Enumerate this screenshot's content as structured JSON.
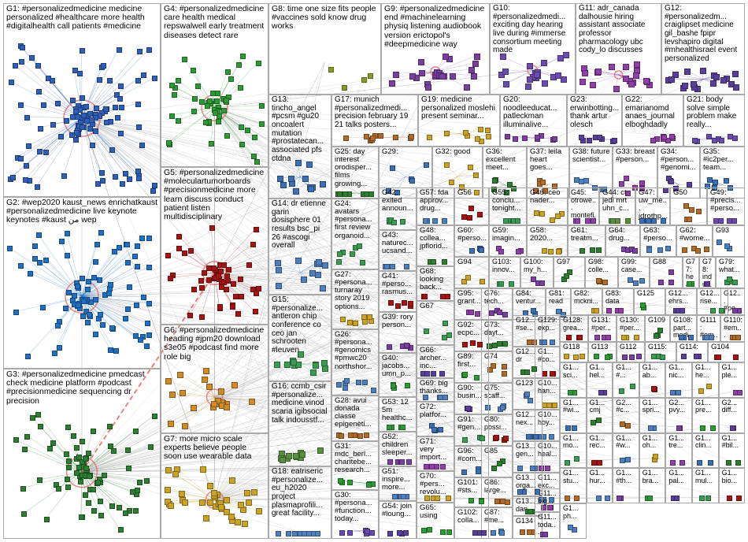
{
  "groups": [
    {
      "id": "G1",
      "label": "G1: #personalizedmedicine medicine personalized #healthcare more health #digitalhealth call patients #medicine",
      "color": "#2f5fb8",
      "nodes": 110
    },
    {
      "id": "G2",
      "label": "G2: #wep2020 kaust_news enrichatkaust #personalizedmedicine live keynote keynotes #kaust من wep",
      "color": "#1f6fc2",
      "nodes": 85
    },
    {
      "id": "G3",
      "label": "G3: #personalizedmedicine pmedcast check medicine platform #podcast #precisionmedicine sequencing dr precision",
      "color": "#2e7d32",
      "nodes": 80
    },
    {
      "id": "G4",
      "label": "G4: #personalizedmedicine care health medical repswalwell early treatment diseases detect rare",
      "color": "#2e9a35",
      "nodes": 55
    },
    {
      "id": "G5",
      "label": "G5: #personalizedmedicine #moleculartumorboards #precisionmedicine more learn discuss conduct patient listen multidisciplinary",
      "color": "#a31515",
      "nodes": 50
    },
    {
      "id": "G6",
      "label": "G6: #personalizedmedicine heading #jpm20 download s3e05 #podcast find more role big",
      "color": "#d08a2a",
      "nodes": 22
    },
    {
      "id": "G7",
      "label": "G7: more micro scale experts believe people soon use wearable data",
      "color": "#c9a227",
      "nodes": 40
    },
    {
      "id": "G8",
      "label": "G8: time one size fits people #vaccines sold know drug works",
      "color": "#8a9a2a",
      "nodes": 4
    },
    {
      "id": "G9",
      "label": "G9: #personalizedmedicine end #machinelearning physiq listening audiobook version erictopol's #deepmedicine way",
      "color": "#7b3fa0",
      "nodes": 26
    },
    {
      "id": "G10",
      "label": "G10: #personalizedmedi... exciting day hearing live during #immerse consortium meeting made",
      "color": "#6a4bb0",
      "nodes": 22
    },
    {
      "id": "G11",
      "label": "G11: adr_canada dalhousie hiring assistant associate professor pharmacology ubc cody_lo discusses",
      "color": "#8e3fa8",
      "nodes": 20
    },
    {
      "id": "G12",
      "label": "G12: #personalizedm... craiglipset medicine gil_bashe fpipr levshapiro digital #mhealthisrael event personalized",
      "color": "#5a3f9a",
      "nodes": 18
    },
    {
      "id": "G13",
      "label": "G13: tincho_angel #pcsm #gu20 oncoalert mutation #prostatecan... associated pfs ctdna",
      "color": "#3c6fb4",
      "nodes": 12
    },
    {
      "id": "G14",
      "label": "G14: dr etienne garin dosisphere 01 results bsc_pi 26 #ascogi overall",
      "color": "#4d7fbf",
      "nodes": 12
    },
    {
      "id": "G15",
      "label": "G15: #personalize... antleron chip conference co ceo jan schrooten #leuven",
      "color": "#3c9a52",
      "nodes": 12
    },
    {
      "id": "G16",
      "label": "G16: ccmb_csir #personalize... medicine vinod scaria igibsocial talk indousstf...",
      "color": "#5a8f3f",
      "nodes": 11
    },
    {
      "id": "G17",
      "label": "G17: munich #personalizedmedi... precision february 19 21 talks posters...",
      "color": "#b06a2a",
      "nodes": 10
    },
    {
      "id": "G18",
      "label": "G18: eatriseric #personalize... eu_h2020 project plasmaprofili... great facility...",
      "color": "#4f7fbf",
      "nodes": 10
    },
    {
      "id": "G19",
      "label": "G19: medicine personalized moslehi present seminar...",
      "color": "#c9a227",
      "nodes": 9
    },
    {
      "id": "G20",
      "label": "G20: noodleeducat... patleckman illuminalive...",
      "color": "#7b3fa0",
      "nodes": 9
    },
    {
      "id": "G21",
      "label": "G21: body solve simple problem make really...",
      "color": "#6a4bb0",
      "nodes": 8
    },
    {
      "id": "G22",
      "label": "G22: emarianomd anaes_journal elboghdadly",
      "color": "#8e3fa8",
      "nodes": 8
    },
    {
      "id": "G23",
      "label": "G23: erwinbotting... thank artur olesch",
      "color": "#5a3f9a",
      "nodes": 8
    },
    {
      "id": "G24",
      "label": "G24: avatars #persona... first review organoid...",
      "color": "#3c9a52",
      "nodes": 7
    },
    {
      "id": "G25",
      "label": "G25: day interest orodisper... films growing...",
      "color": "#2e7d32",
      "nodes": 7
    },
    {
      "id": "G26",
      "label": "G26: #persona... #genomics #pmwc20 northshor...",
      "color": "#4d7fbf",
      "nodes": 7
    },
    {
      "id": "G27",
      "label": "G27: #persona... turnaray story 2019 options...",
      "color": "#c9a227",
      "nodes": 7
    },
    {
      "id": "G28",
      "label": "G28: avui donada classe epigenèti...",
      "color": "#b06a2a",
      "nodes": 7
    },
    {
      "id": "G29",
      "label": "G29:",
      "color": "#3c6fb4",
      "nodes": 6
    },
    {
      "id": "G30",
      "label": "G30: #persona... #function... today...",
      "color": "#6a4bb0",
      "nodes": 6
    },
    {
      "id": "G31",
      "label": "G31: mdc_berl... charitebe... research...",
      "color": "#2e9a35",
      "nodes": 6
    },
    {
      "id": "G32",
      "label": "G32: good",
      "color": "#c9a227",
      "nodes": 6
    },
    {
      "id": "G33",
      "label": "G33: breast #person...",
      "color": "#8e3fa8",
      "nodes": 6
    },
    {
      "id": "G34",
      "label": "G34: #person... #genomi...",
      "color": "#5a3f9a",
      "nodes": 6
    },
    {
      "id": "G35",
      "label": "G35: #ic2per... team...",
      "color": "#3c6fb4",
      "nodes": 6
    },
    {
      "id": "G36",
      "label": "G36: excellent meet...",
      "color": "#2e7d32",
      "nodes": 6
    },
    {
      "id": "G37",
      "label": "G37: leila heart goes...",
      "color": "#b06a2a",
      "nodes": 6
    },
    {
      "id": "G38",
      "label": "G38: future scientist...",
      "color": "#4f7fbf",
      "nodes": 6
    },
    {
      "id": "G39",
      "label": "G39: rory person...",
      "color": "#7b3fa0",
      "nodes": 5
    },
    {
      "id": "G40",
      "label": "G40: jacobs... umn_p...",
      "color": "#2e9a35",
      "nodes": 5
    },
    {
      "id": "G41",
      "label": "G41: #perso... rasmus...",
      "color": "#a31515",
      "nodes": 5
    },
    {
      "id": "G42",
      "label": "G42: exited announ...",
      "color": "#3c9a52",
      "nodes": 5
    },
    {
      "id": "G43",
      "label": "G43: naturec... ucsand...",
      "color": "#4d7fbf",
      "nodes": 5
    },
    {
      "id": "G44",
      "label": "G44: ct jedi mrt uhn_c...",
      "color": "#5a8f3f",
      "nodes": 5
    },
    {
      "id": "G45",
      "label": "G45: otrowe... montefi...",
      "color": "#8e3fa8",
      "nodes": 5
    },
    {
      "id": "G46",
      "label": "G46: ceo nader...",
      "color": "#c9a227",
      "nodes": 5
    },
    {
      "id": "G47",
      "label": "G47: uw_me... jdrothp...",
      "color": "#3c6fb4",
      "nodes": 5
    },
    {
      "id": "G48",
      "label": "G48: collea... jpflorid...",
      "color": "#2e7d32",
      "nodes": 5
    },
    {
      "id": "G49",
      "label": "G49: #precis... #perso...",
      "color": "#6a4bb0",
      "nodes": 5
    },
    {
      "id": "G50",
      "label": "G50",
      "color": "#b06a2a",
      "nodes": 5
    },
    {
      "id": "G51",
      "label": "G51: inspire... more...",
      "color": "#4f7fbf",
      "nodes": 5
    },
    {
      "id": "G52",
      "label": "G52: children sleeper...",
      "color": "#7b3fa0",
      "nodes": 5
    },
    {
      "id": "G53",
      "label": "G53: 12 5m healthc...",
      "color": "#2e9a35",
      "nodes": 4
    },
    {
      "id": "G54",
      "label": "G54: join #loung...",
      "color": "#5a3f9a",
      "nodes": 4
    },
    {
      "id": "G55",
      "label": "G55: conclu... tonight...",
      "color": "#3c9a52",
      "nodes": 4
    },
    {
      "id": "G56",
      "label": "G56",
      "color": "#a31515",
      "nodes": 4
    },
    {
      "id": "G57",
      "label": "G57: fda approv... drug...",
      "color": "#4d7fbf",
      "nodes": 4
    },
    {
      "id": "G58",
      "label": "G58: 2020...",
      "color": "#c9a227",
      "nodes": 4
    },
    {
      "id": "G59",
      "label": "G59: imagin...",
      "color": "#8e3fa8",
      "nodes": 4
    },
    {
      "id": "G60",
      "label": "G60: #perso...",
      "color": "#3c6fb4",
      "nodes": 4
    },
    {
      "id": "G61",
      "label": "G61: treatm...",
      "color": "#2e7d32",
      "nodes": 4
    },
    {
      "id": "G62",
      "label": "G62: #wome...",
      "color": "#b06a2a",
      "nodes": 4
    },
    {
      "id": "G63",
      "label": "G63: #perso...",
      "color": "#4f7fbf",
      "nodes": 4
    },
    {
      "id": "G64",
      "label": "G64: drug...",
      "color": "#7b3fa0",
      "nodes": 4
    },
    {
      "id": "G65",
      "label": "G65: using",
      "color": "#2e9a35",
      "nodes": 4
    },
    {
      "id": "G66",
      "label": "G66: archer... inc...",
      "color": "#5a3f9a",
      "nodes": 4
    },
    {
      "id": "G67",
      "label": "G67",
      "color": "#3c9a52",
      "nodes": 4
    },
    {
      "id": "G68",
      "label": "G68: looking back...",
      "color": "#a31515",
      "nodes": 4
    },
    {
      "id": "G69",
      "label": "G69: big thanks...",
      "color": "#4d7fbf",
      "nodes": 4
    },
    {
      "id": "G70",
      "label": "G70: #pers... revolu...",
      "color": "#c9a227",
      "nodes": 4
    },
    {
      "id": "G71",
      "label": "G71: very import...",
      "color": "#8e3fa8",
      "nodes": 4
    },
    {
      "id": "G72",
      "label": "G72: platfor...",
      "color": "#3c6fb4",
      "nodes": 4
    },
    {
      "id": "G73",
      "label": "G73: dayt...",
      "color": "#2e7d32",
      "nodes": 4
    },
    {
      "id": "G74",
      "label": "G74",
      "color": "#b06a2a",
      "nodes": 4
    },
    {
      "id": "G75",
      "label": "G75: scaff...",
      "color": "#4f7fbf",
      "nodes": 4
    },
    {
      "id": "G76",
      "label": "G76: tech...",
      "color": "#7b3fa0",
      "nodes": 4
    },
    {
      "id": "G77",
      "label": "G77: healt...",
      "color": "#2e9a35",
      "nodes": 4
    },
    {
      "id": "G78",
      "label": "G78: indus...",
      "color": "#5a3f9a",
      "nodes": 4
    },
    {
      "id": "G79",
      "label": "G79: what...",
      "color": "#3c9a52",
      "nodes": 4
    },
    {
      "id": "G80",
      "label": "G80: possi...",
      "color": "#a31515",
      "nodes": 4
    },
    {
      "id": "G81",
      "label": "G81: read",
      "color": "#4d7fbf",
      "nodes": 3
    },
    {
      "id": "G82",
      "label": "G82: mckni...",
      "color": "#c9a227",
      "nodes": 3
    },
    {
      "id": "G83",
      "label": "G83: data",
      "color": "#8e3fa8",
      "nodes": 3
    },
    {
      "id": "G84",
      "label": "G84: ventur...",
      "color": "#3c6fb4",
      "nodes": 3
    },
    {
      "id": "G85",
      "label": "G85",
      "color": "#2e7d32",
      "nodes": 3
    },
    {
      "id": "G86",
      "label": "G86: large...",
      "color": "#b06a2a",
      "nodes": 3
    },
    {
      "id": "G87",
      "label": "G87: #me...",
      "color": "#4f7fbf",
      "nodes": 3
    },
    {
      "id": "G88",
      "label": "G88",
      "color": "#7b3fa0",
      "nodes": 3
    },
    {
      "id": "G89",
      "label": "G89: first...",
      "color": "#2e9a35",
      "nodes": 3
    },
    {
      "id": "G90",
      "label": "G90: busin...",
      "color": "#5a3f9a",
      "nodes": 3
    },
    {
      "id": "G91",
      "label": "G91: #gen...",
      "color": "#3c9a52",
      "nodes": 3
    },
    {
      "id": "G92",
      "label": "G92: ecpc...",
      "color": "#a31515",
      "nodes": 3
    },
    {
      "id": "G93",
      "label": "G93",
      "color": "#4d7fbf",
      "nodes": 3
    },
    {
      "id": "G94",
      "label": "G94",
      "color": "#c9a227",
      "nodes": 3
    },
    {
      "id": "G95",
      "label": "G95: grant...",
      "color": "#8e3fa8",
      "nodes": 3
    },
    {
      "id": "G96",
      "label": "G96: #com...",
      "color": "#3c6fb4",
      "nodes": 3
    },
    {
      "id": "G97",
      "label": "G97",
      "color": "#2e7d32",
      "nodes": 3
    },
    {
      "id": "G98",
      "label": "G98: colle...",
      "color": "#b06a2a",
      "nodes": 3
    },
    {
      "id": "G99",
      "label": "G99: case...",
      "color": "#4f7fbf",
      "nodes": 3
    },
    {
      "id": "G100",
      "label": "G100: my_h...",
      "color": "#7b3fa0",
      "nodes": 3
    },
    {
      "id": "G101",
      "label": "G101: #sts...",
      "color": "#2e9a35",
      "nodes": 3
    },
    {
      "id": "G102",
      "label": "G102: colla...",
      "color": "#5a3f9a",
      "nodes": 3
    },
    {
      "id": "G103",
      "label": "G103: innov...",
      "color": "#3c9a52",
      "nodes": 3
    },
    {
      "id": "G104",
      "label": "G104",
      "color": "#a31515",
      "nodes": 3
    },
    {
      "id": "G105",
      "label": "G10... hoy...",
      "color": "#4d7fbf",
      "nodes": 3
    },
    {
      "id": "G106",
      "label": "G10... han...",
      "color": "#c9a227",
      "nodes": 3
    },
    {
      "id": "G107",
      "label": "G10... heal...",
      "color": "#8e3fa8",
      "nodes": 3
    },
    {
      "id": "G108",
      "label": "G108: part... medi...",
      "color": "#3c6fb4",
      "nodes": 3
    },
    {
      "id": "G109",
      "label": "G109",
      "color": "#2e7d32",
      "nodes": 3
    },
    {
      "id": "G110",
      "label": "G110: #em...",
      "color": "#b06a2a",
      "nodes": 3
    },
    {
      "id": "G111",
      "label": "G111: #em...",
      "color": "#4f7fbf",
      "nodes": 3
    },
    {
      "id": "G112",
      "label": "G112",
      "color": "#7b3fa0",
      "nodes": 3
    },
    {
      "id": "G113",
      "label": "G113",
      "color": "#2e9a35",
      "nodes": 3
    },
    {
      "id": "G114",
      "label": "G114:",
      "color": "#5a3f9a",
      "nodes": 3
    },
    {
      "id": "G115",
      "label": "G115:",
      "color": "#3c9a52",
      "nodes": 3
    },
    {
      "id": "G116",
      "label": "G1... #co...",
      "color": "#a31515",
      "nodes": 3
    },
    {
      "id": "G117",
      "label": "G11... exc...",
      "color": "#4d7fbf",
      "nodes": 3
    },
    {
      "id": "G118",
      "label": "G118",
      "color": "#c9a227",
      "nodes": 3
    },
    {
      "id": "G119",
      "label": "G11... big...",
      "color": "#8e3fa8",
      "nodes": 3
    },
    {
      "id": "G120",
      "label": "G12... nex...",
      "color": "#3c6fb4",
      "nodes": 3
    },
    {
      "id": "G121",
      "label": "G12... dr",
      "color": "#2e7d32",
      "nodes": 3
    },
    {
      "id": "G122",
      "label": "G12... #se...",
      "color": "#b06a2a",
      "nodes": 3
    },
    {
      "id": "G123",
      "label": "G123",
      "color": "#4f7fbf",
      "nodes": 3
    },
    {
      "id": "G124",
      "label": "G12... #pe...",
      "color": "#7b3fa0",
      "nodes": 3
    },
    {
      "id": "G125",
      "label": "G125",
      "color": "#2e9a35",
      "nodes": 3
    },
    {
      "id": "G126",
      "label": "G12... ehrs...",
      "color": "#5a3f9a",
      "nodes": 3
    },
    {
      "id": "G127",
      "label": "G12... rise...",
      "color": "#3c9a52",
      "nodes": 3
    },
    {
      "id": "G128",
      "label": "G128: grea...",
      "color": "#a31515",
      "nodes": 3
    },
    {
      "id": "G129",
      "label": "G129: exp...",
      "color": "#4d7fbf",
      "nodes": 3
    },
    {
      "id": "G130",
      "label": "G130: #per...",
      "color": "#c9a227",
      "nodes": 3
    },
    {
      "id": "G131",
      "label": "G131: #per...",
      "color": "#8e3fa8",
      "nodes": 3
    },
    {
      "id": "G132",
      "label": "G13... orga...",
      "color": "#3c6fb4",
      "nodes": 3
    },
    {
      "id": "G133",
      "label": "G13... dan...",
      "color": "#2e7d32",
      "nodes": 3
    },
    {
      "id": "G134",
      "label": "G134",
      "color": "#b06a2a",
      "nodes": 3
    },
    {
      "id": "G135",
      "label": "G13... gen...",
      "color": "#4f7fbf",
      "nodes": 3
    },
    {
      "id": "G136",
      "label": "G11... toda...",
      "color": "#7b3fa0",
      "nodes": 3
    },
    {
      "id": "G137",
      "label": "G1... sci...",
      "color": "#2e9a35",
      "nodes": 2
    },
    {
      "id": "G138",
      "label": "G1... hel...",
      "color": "#5a3f9a",
      "nodes": 2
    },
    {
      "id": "G139",
      "label": "G1... #...",
      "color": "#3c9a52",
      "nodes": 2
    },
    {
      "id": "G140",
      "label": "G1... ab...",
      "color": "#a31515",
      "nodes": 2
    },
    {
      "id": "G141",
      "label": "G1... nic...",
      "color": "#4d7fbf",
      "nodes": 2
    },
    {
      "id": "G142",
      "label": "G1... he...",
      "color": "#c9a227",
      "nodes": 2
    },
    {
      "id": "G143",
      "label": "G1... ple...",
      "color": "#8e3fa8",
      "nodes": 2
    },
    {
      "id": "G144",
      "label": "G1... #wi...",
      "color": "#3c6fb4",
      "nodes": 2
    },
    {
      "id": "G145",
      "label": "G1... cmj",
      "color": "#2e7d32",
      "nodes": 2
    },
    {
      "id": "G146",
      "label": "G2... #c...",
      "color": "#b06a2a",
      "nodes": 2
    },
    {
      "id": "G147",
      "label": "G1... spri...",
      "color": "#4f7fbf",
      "nodes": 2
    },
    {
      "id": "G148",
      "label": "G2... pvy...",
      "color": "#7b3fa0",
      "nodes": 2
    },
    {
      "id": "G149",
      "label": "G1... pre...",
      "color": "#2e9a35",
      "nodes": 2
    },
    {
      "id": "G150",
      "label": "G2... diff...",
      "color": "#5a3f9a",
      "nodes": 2
    },
    {
      "id": "G151",
      "label": "G1... mo...",
      "color": "#3c9a52",
      "nodes": 2
    },
    {
      "id": "G152",
      "label": "G1... rec...",
      "color": "#a31515",
      "nodes": 2
    },
    {
      "id": "G153",
      "label": "G1... #w...",
      "color": "#4d7fbf",
      "nodes": 2
    },
    {
      "id": "G154",
      "label": "G1... oh...",
      "color": "#c9a227",
      "nodes": 2
    },
    {
      "id": "G155",
      "label": "G1... tre...",
      "color": "#8e3fa8",
      "nodes": 2
    },
    {
      "id": "G156",
      "label": "G1... clin...",
      "color": "#3c6fb4",
      "nodes": 2
    },
    {
      "id": "G157",
      "label": "G1... #bil...",
      "color": "#2e7d32",
      "nodes": 2
    },
    {
      "id": "G158",
      "label": "G1... stu...",
      "color": "#b06a2a",
      "nodes": 2
    },
    {
      "id": "G159",
      "label": "G1... hur...",
      "color": "#4f7fbf",
      "nodes": 2
    },
    {
      "id": "G160",
      "label": "G1... #th...",
      "color": "#7b3fa0",
      "nodes": 2
    },
    {
      "id": "G161",
      "label": "G1... bra...",
      "color": "#2e9a35",
      "nodes": 2
    },
    {
      "id": "G162",
      "label": "G1... pal...",
      "color": "#5a3f9a",
      "nodes": 2
    },
    {
      "id": "G163",
      "label": "G1... mul...",
      "color": "#3c9a52",
      "nodes": 2
    },
    {
      "id": "G164",
      "label": "G1... bio...",
      "color": "#a31515",
      "nodes": 2
    },
    {
      "id": "G165",
      "label": "G1... ph...",
      "color": "#4d7fbf",
      "nodes": 2
    }
  ]
}
